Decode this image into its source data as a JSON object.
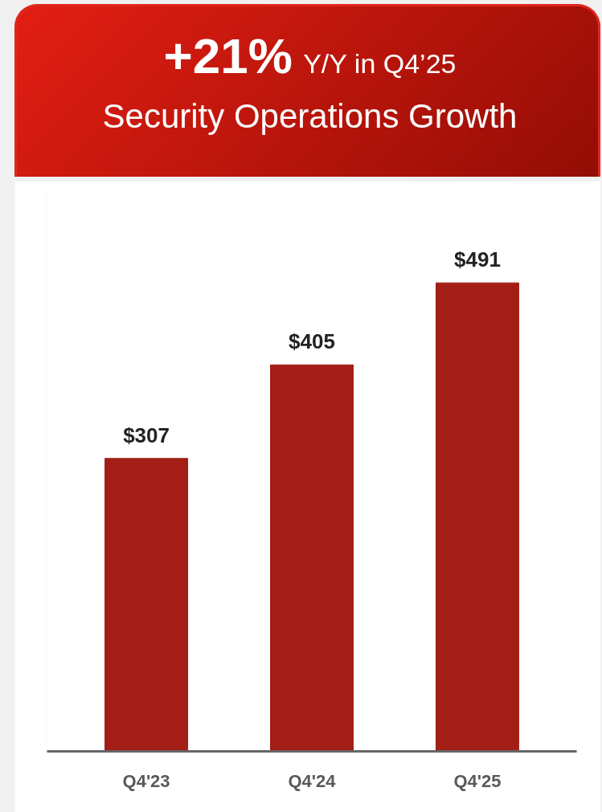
{
  "chart_data": {
    "type": "bar",
    "title": "+21% Y/Y in Q4’25",
    "subtitle": "Security Operations Growth",
    "categories": [
      "Q4'23",
      "Q4'24",
      "Q4'25"
    ],
    "values": [
      307,
      405,
      491
    ],
    "value_labels": [
      "$307",
      "$405",
      "$491"
    ],
    "color": "#a31e16",
    "grid": false,
    "tick_labels": "x"
  }
}
